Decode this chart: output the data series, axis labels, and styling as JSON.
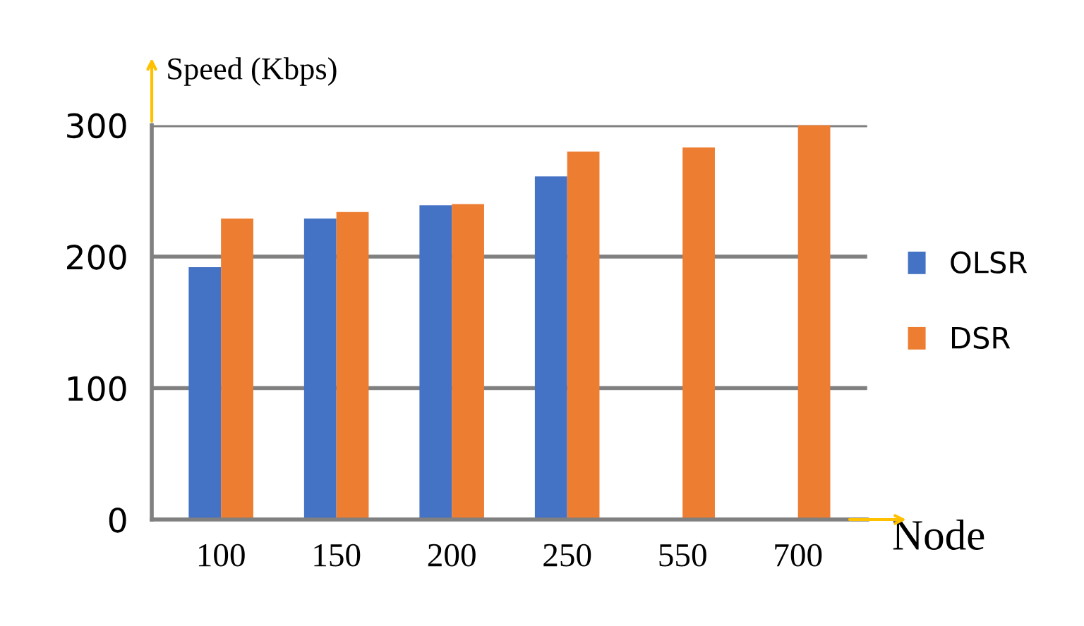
{
  "chart_data": {
    "type": "bar",
    "xlabel": "Node",
    "ylabel": "Speed (Kbps)",
    "categories": [
      "100",
      "150",
      "200",
      "250",
      "550",
      "700"
    ],
    "series": [
      {
        "name": "OLSR",
        "color": "#4472c4",
        "values": [
          192,
          229,
          239,
          261,
          null,
          null
        ]
      },
      {
        "name": "DSR",
        "color": "#ed7d31",
        "values": [
          229,
          234,
          240,
          280,
          283,
          300
        ]
      }
    ],
    "ylim": [
      0,
      300
    ],
    "yticks": [
      0,
      100,
      200,
      300
    ],
    "grid": "y",
    "legend": "right"
  }
}
